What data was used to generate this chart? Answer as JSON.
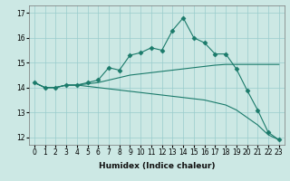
{
  "xlabel": "Humidex (Indice chaleur)",
  "bg_color": "#cce8e4",
  "grid_color": "#99cccc",
  "line_color": "#1a7a6a",
  "xlim": [
    -0.5,
    23.5
  ],
  "ylim": [
    11.7,
    17.3
  ],
  "yticks": [
    12,
    13,
    14,
    15,
    16,
    17
  ],
  "xticks": [
    0,
    1,
    2,
    3,
    4,
    5,
    6,
    7,
    8,
    9,
    10,
    11,
    12,
    13,
    14,
    15,
    16,
    17,
    18,
    19,
    20,
    21,
    22,
    23
  ],
  "line1_x": [
    0,
    1,
    2,
    3,
    4,
    5,
    6,
    7,
    8,
    9,
    10,
    11,
    12,
    13,
    14,
    15,
    16,
    17,
    18,
    19,
    20,
    21,
    22,
    23
  ],
  "line1_y": [
    14.2,
    14.0,
    14.0,
    14.1,
    14.1,
    14.2,
    14.3,
    14.8,
    14.7,
    15.3,
    15.4,
    15.6,
    15.5,
    16.3,
    16.8,
    16.0,
    15.8,
    15.35,
    15.35,
    14.75,
    13.9,
    13.1,
    12.2,
    11.9
  ],
  "line2_x": [
    0,
    1,
    2,
    3,
    4,
    5,
    6,
    7,
    8,
    9,
    10,
    11,
    12,
    13,
    14,
    15,
    16,
    17,
    18,
    19,
    20,
    21,
    22,
    23
  ],
  "line2_y": [
    14.2,
    14.0,
    14.0,
    14.1,
    14.1,
    14.15,
    14.2,
    14.3,
    14.4,
    14.5,
    14.55,
    14.6,
    14.65,
    14.7,
    14.75,
    14.8,
    14.85,
    14.9,
    14.93,
    14.93,
    14.93,
    14.93,
    14.93,
    14.93
  ],
  "line3_x": [
    0,
    1,
    2,
    3,
    4,
    5,
    6,
    7,
    8,
    9,
    10,
    11,
    12,
    13,
    14,
    15,
    16,
    17,
    18,
    19,
    20,
    21,
    22,
    23
  ],
  "line3_y": [
    14.2,
    14.0,
    14.0,
    14.1,
    14.1,
    14.05,
    14.0,
    13.95,
    13.9,
    13.85,
    13.8,
    13.75,
    13.7,
    13.65,
    13.6,
    13.55,
    13.5,
    13.4,
    13.3,
    13.1,
    12.8,
    12.5,
    12.1,
    11.9
  ],
  "marker": "D",
  "markersize": 2.5,
  "tick_fontsize": 5.5,
  "xlabel_fontsize": 6.5
}
